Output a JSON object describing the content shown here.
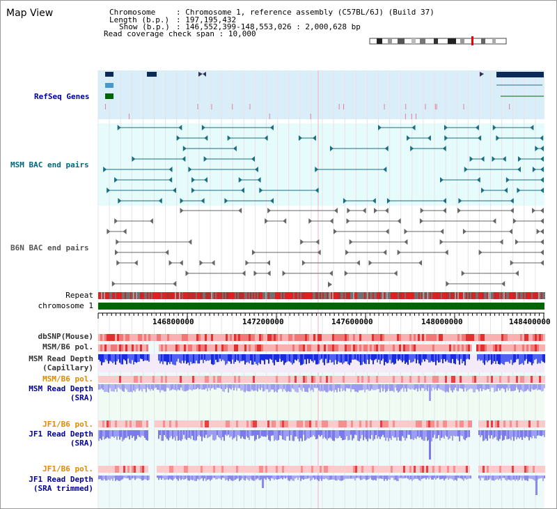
{
  "page": {
    "title": "Map View"
  },
  "info": {
    "chromosome_key": "Chromosome",
    "chromosome_val": "Chromosome 1, reference assembly (C57BL/6J) (Build 37)",
    "length_key": "Length (b.p.)",
    "length_val": "197,195,432",
    "show_key": "Show (b.p.)",
    "show_val": "146,552,399-148,553,026 : 2,000,628 bp",
    "coverage_key": "Read coverage check span",
    "coverage_val": "10,000"
  },
  "tracks": {
    "refseq": "RefSeq Genes",
    "msm_bac": "MSM BAC end pairs",
    "b6n_bac": "B6N BAC end pairs",
    "repeat": "Repeat",
    "chromosome": "chromosome 1",
    "dbsnp": "dbSNP(Mouse)",
    "msm_b6_pol": "MSM/B6 pol.",
    "msm_depth_cap_1": "MSM Read Depth",
    "msm_depth_cap_2": "(Capillary)",
    "msm_b6_pol_2": "MSM/B6 pol.",
    "msm_depth_sra_1": "MSM Read Depth",
    "msm_depth_sra_2": "(SRA)",
    "jf1_b6_pol": "JF1/B6 pol.",
    "jf1_depth_sra_1": "JF1 Read Depth",
    "jf1_depth_sra_2": "(SRA)",
    "jf1_b6_pol_2": "JF1/B6 pol.",
    "jf1_depth_trim_1": "JF1 Read Depth",
    "jf1_depth_trim_2": "(SRA trimmed)"
  },
  "axis": {
    "ticks": [
      "146800000",
      "147200000",
      "147600000",
      "148000000",
      "148400000"
    ]
  },
  "colors": {
    "refseq_label": "#000099",
    "msm_label": "#006680",
    "b6n_label": "#555555",
    "pol_label": "#e08a00",
    "depth_label": "#000099",
    "chromosome_green": "#006600",
    "repeat_red": "#e02020"
  }
}
